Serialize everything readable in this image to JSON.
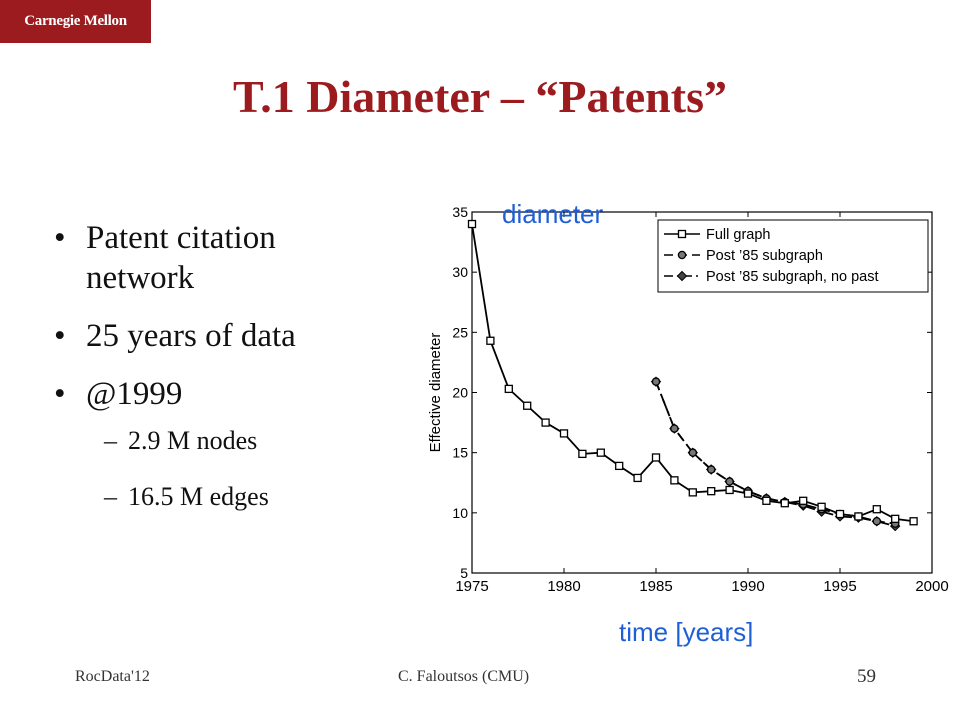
{
  "header": {
    "logo_text": "Carnegie Mellon",
    "title": "T.1 Diameter – “Patents”"
  },
  "bullets": [
    {
      "text": "Patent citation network"
    },
    {
      "text": "25 years of data"
    },
    {
      "text": "@1999"
    }
  ],
  "sub_bullets": [
    {
      "text": "2.9 M nodes"
    },
    {
      "text": "16.5 M edges"
    }
  ],
  "footer": {
    "left": "RocData'12",
    "middle": "C. Faloutsos (CMU)",
    "page_number": "59"
  },
  "colors": {
    "brand": "#9b1b1f",
    "annotation": "#1f5fd6"
  },
  "chart_data": {
    "type": "line",
    "annotations": [
      "diameter",
      "time [years]"
    ],
    "xlabel": "",
    "ylabel": "Effective diameter",
    "xlim": [
      1975,
      2000
    ],
    "ylim": [
      5,
      35
    ],
    "xticks": [
      1975,
      1980,
      1985,
      1990,
      1995,
      2000
    ],
    "yticks": [
      5,
      10,
      15,
      20,
      25,
      30,
      35
    ],
    "legend_position": "top-right",
    "series": [
      {
        "name": "Full graph",
        "marker": "square",
        "line": "solid",
        "x": [
          1975,
          1976,
          1977,
          1978,
          1979,
          1980,
          1981,
          1982,
          1983,
          1984,
          1985,
          1986,
          1987,
          1988,
          1989,
          1990,
          1991,
          1992,
          1993,
          1994,
          1995,
          1996,
          1997,
          1998,
          1999
        ],
        "y": [
          34.0,
          24.3,
          20.3,
          18.9,
          17.5,
          16.6,
          14.9,
          15.0,
          13.9,
          12.9,
          14.6,
          12.7,
          11.7,
          11.8,
          11.9,
          11.6,
          11.0,
          10.8,
          11.0,
          10.5,
          9.9,
          9.7,
          10.3,
          9.5,
          9.3
        ]
      },
      {
        "name": "Post ’85 subgraph",
        "marker": "circle",
        "line": "dashed",
        "x": [
          1985,
          1986,
          1987,
          1988,
          1989,
          1990,
          1991,
          1992,
          1993,
          1994,
          1995,
          1996,
          1997,
          1998
        ],
        "y": [
          20.9,
          17.0,
          15.0,
          13.6,
          12.6,
          11.8,
          11.2,
          10.9,
          10.7,
          10.3,
          9.9,
          9.7,
          9.3,
          9.1
        ]
      },
      {
        "name": "Post ’85 subgraph, no past",
        "marker": "diamond",
        "line": "dashdot",
        "x": [
          1985,
          1986,
          1987,
          1988,
          1989,
          1990,
          1991,
          1992,
          1993,
          1994,
          1995,
          1996,
          1997,
          1998
        ],
        "y": [
          20.9,
          17.0,
          15.0,
          13.6,
          12.6,
          11.8,
          11.2,
          10.9,
          10.6,
          10.1,
          9.7,
          9.6,
          9.3,
          8.9
        ]
      }
    ]
  }
}
